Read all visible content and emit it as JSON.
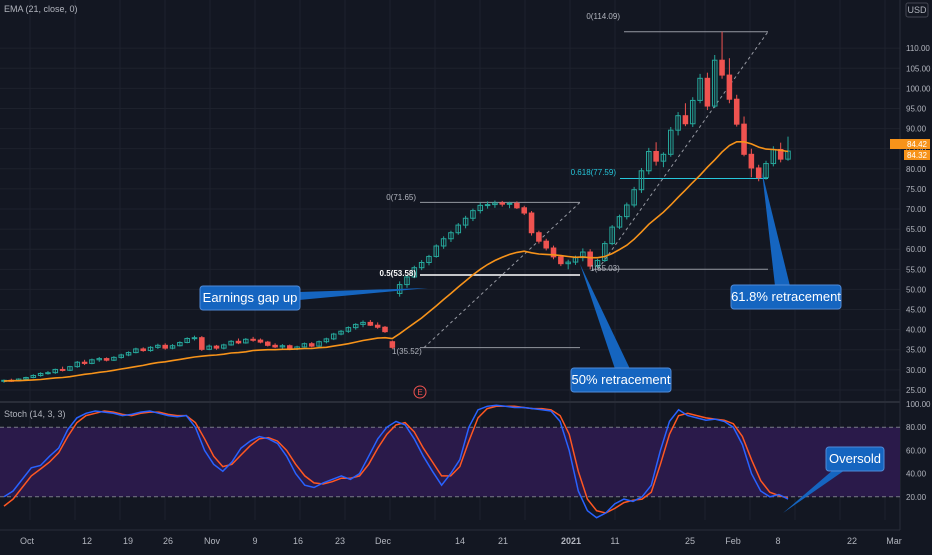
{
  "header": {
    "ema_label": "EMA (21, close, 0)",
    "currency": "USD"
  },
  "price_axis": {
    "ticks": [
      "110.00",
      "105.00",
      "100.00",
      "95.00",
      "90.00",
      "85.00",
      "80.00",
      "75.00",
      "70.00",
      "65.00",
      "60.00",
      "55.00",
      "50.00",
      "45.00",
      "40.00",
      "35.00",
      "30.00",
      "25.00"
    ],
    "last_price": "84.42",
    "ema_value": "84.32",
    "last_price_color": "#f7931a",
    "ema_color": "#f7931a"
  },
  "stoch_axis": {
    "ticks": [
      "100.00",
      "80.00",
      "60.00",
      "40.00",
      "20.00"
    ]
  },
  "time_axis": {
    "ticks": [
      "Oct",
      "12",
      "19",
      "26",
      "Nov",
      "9",
      "16",
      "23",
      "Dec",
      "14",
      "21",
      "2021",
      "11",
      "25",
      "Feb",
      "8",
      "22",
      "Mar"
    ]
  },
  "stoch_label": "Stoch (14, 3, 3)",
  "fib": {
    "upper": {
      "level_0": "0(114.09)",
      "level_618": "0.618(77.59)",
      "level_1": "1(55.03)"
    },
    "lower": {
      "level_0": "0(71.65)",
      "level_05": "0.5(53.58)",
      "level_1": "1(35.52)"
    }
  },
  "callouts": {
    "earnings": "Earnings gap up",
    "fifty": "50% retracement",
    "sixtyone": "61.8% retracement",
    "oversold": "Oversold"
  },
  "earnings_marker": "E",
  "colors": {
    "up": "#26a69a",
    "down": "#ef5350",
    "ema": "#f7931a",
    "stoch_k": "#2962ff",
    "stoch_d": "#ff5722",
    "stoch_band": "#2a1a4a",
    "callout_bg": "#1565c0"
  },
  "chart_data": {
    "type": "candlestick",
    "ylim": [
      23,
      117
    ],
    "stoch_ylim": [
      0,
      100
    ],
    "candles": [
      [
        27.2,
        27.6,
        26.8,
        27.4
      ],
      [
        27.4,
        27.8,
        27.0,
        27.3
      ],
      [
        27.3,
        27.9,
        27.1,
        27.7
      ],
      [
        27.7,
        28.3,
        27.5,
        28.1
      ],
      [
        28.1,
        28.9,
        27.9,
        28.6
      ],
      [
        28.6,
        29.4,
        28.3,
        29.1
      ],
      [
        29.1,
        29.7,
        28.8,
        29.3
      ],
      [
        29.3,
        30.3,
        29.0,
        30.1
      ],
      [
        30.1,
        30.8,
        29.6,
        29.9
      ],
      [
        29.9,
        31.0,
        29.7,
        30.8
      ],
      [
        30.8,
        32.2,
        30.5,
        31.9
      ],
      [
        31.9,
        32.5,
        31.2,
        31.6
      ],
      [
        31.6,
        32.8,
        31.4,
        32.5
      ],
      [
        32.5,
        33.2,
        32.0,
        32.8
      ],
      [
        32.8,
        33.1,
        32.1,
        32.4
      ],
      [
        32.4,
        33.4,
        32.2,
        33.1
      ],
      [
        33.1,
        34.0,
        32.8,
        33.7
      ],
      [
        33.7,
        34.6,
        33.4,
        34.3
      ],
      [
        34.3,
        35.5,
        34.1,
        35.2
      ],
      [
        35.2,
        35.6,
        34.5,
        34.8
      ],
      [
        34.8,
        35.9,
        34.5,
        35.6
      ],
      [
        35.6,
        36.5,
        35.2,
        36.1
      ],
      [
        36.1,
        36.6,
        35.0,
        35.4
      ],
      [
        35.4,
        36.4,
        35.1,
        36.0
      ],
      [
        36.0,
        37.1,
        35.8,
        36.8
      ],
      [
        36.8,
        38.1,
        36.6,
        37.8
      ],
      [
        37.8,
        38.5,
        37.3,
        38.0
      ],
      [
        38.0,
        38.4,
        34.7,
        35.1
      ],
      [
        35.1,
        36.3,
        34.9,
        35.9
      ],
      [
        35.9,
        36.2,
        35.0,
        35.4
      ],
      [
        35.4,
        36.5,
        35.1,
        36.2
      ],
      [
        36.2,
        37.4,
        36.0,
        37.1
      ],
      [
        37.1,
        37.8,
        36.4,
        36.7
      ],
      [
        36.7,
        37.9,
        36.5,
        37.6
      ],
      [
        37.6,
        38.2,
        37.0,
        37.4
      ],
      [
        37.4,
        37.8,
        36.6,
        36.9
      ],
      [
        36.9,
        37.2,
        35.8,
        36.1
      ],
      [
        36.1,
        36.6,
        35.4,
        35.7
      ],
      [
        35.7,
        36.4,
        35.3,
        36.0
      ],
      [
        36.0,
        36.3,
        34.9,
        35.2
      ],
      [
        35.2,
        36.0,
        34.9,
        35.7
      ],
      [
        35.7,
        36.8,
        35.5,
        36.5
      ],
      [
        36.5,
        36.9,
        35.6,
        35.9
      ],
      [
        35.9,
        37.3,
        35.7,
        37.0
      ],
      [
        37.0,
        38.0,
        36.6,
        37.7
      ],
      [
        37.7,
        39.2,
        37.4,
        38.9
      ],
      [
        38.9,
        39.9,
        38.6,
        39.6
      ],
      [
        39.6,
        40.8,
        39.2,
        40.5
      ],
      [
        40.5,
        41.6,
        40.0,
        41.3
      ],
      [
        41.3,
        42.3,
        40.6,
        41.8
      ],
      [
        41.8,
        42.4,
        40.9,
        41.1
      ],
      [
        41.1,
        41.8,
        40.2,
        40.6
      ],
      [
        40.6,
        40.9,
        39.2,
        39.5
      ],
      [
        37.0,
        37.3,
        35.2,
        35.6
      ],
      [
        49.0,
        52.0,
        48.2,
        51.2
      ],
      [
        51.2,
        53.6,
        50.4,
        53.1
      ],
      [
        53.1,
        55.9,
        52.8,
        55.4
      ],
      [
        55.4,
        57.3,
        54.8,
        56.7
      ],
      [
        56.7,
        58.6,
        56.0,
        58.2
      ],
      [
        58.2,
        61.2,
        57.9,
        60.8
      ],
      [
        60.8,
        63.2,
        60.1,
        62.6
      ],
      [
        62.6,
        64.6,
        61.8,
        64.1
      ],
      [
        64.1,
        66.5,
        63.6,
        66.0
      ],
      [
        66.0,
        68.3,
        65.2,
        67.7
      ],
      [
        67.7,
        70.1,
        67.0,
        69.6
      ],
      [
        69.6,
        71.6,
        68.9,
        70.9
      ],
      [
        70.9,
        71.9,
        70.1,
        71.1
      ],
      [
        71.1,
        72.1,
        70.3,
        71.5
      ],
      [
        71.5,
        72.0,
        70.6,
        71.2
      ],
      [
        71.2,
        71.8,
        70.2,
        71.4
      ],
      [
        71.4,
        71.9,
        70.0,
        70.3
      ],
      [
        70.3,
        70.8,
        68.5,
        69.0
      ],
      [
        69.0,
        69.5,
        63.4,
        64.1
      ],
      [
        64.1,
        64.6,
        61.4,
        62.0
      ],
      [
        62.0,
        62.6,
        59.7,
        60.3
      ],
      [
        60.3,
        60.9,
        57.5,
        58.1
      ],
      [
        58.1,
        58.6,
        55.8,
        56.4
      ],
      [
        56.4,
        57.4,
        55.0,
        56.8
      ],
      [
        56.8,
        58.4,
        56.1,
        57.9
      ],
      [
        57.9,
        60.2,
        57.0,
        59.3
      ],
      [
        59.3,
        60.0,
        55.0,
        55.8
      ],
      [
        55.8,
        57.6,
        55.3,
        57.2
      ],
      [
        57.2,
        62.0,
        56.8,
        61.4
      ],
      [
        61.4,
        66.0,
        61.0,
        65.5
      ],
      [
        65.5,
        68.6,
        65.0,
        68.1
      ],
      [
        68.1,
        71.6,
        67.4,
        71.0
      ],
      [
        71.0,
        75.5,
        70.4,
        74.8
      ],
      [
        74.8,
        80.2,
        74.0,
        79.5
      ],
      [
        79.5,
        85.2,
        78.6,
        84.3
      ],
      [
        84.3,
        86.6,
        80.8,
        81.9
      ],
      [
        81.9,
        84.1,
        80.4,
        83.6
      ],
      [
        83.6,
        90.4,
        83.0,
        89.6
      ],
      [
        89.6,
        94.1,
        88.3,
        93.2
      ],
      [
        93.2,
        96.3,
        90.6,
        91.2
      ],
      [
        91.2,
        97.8,
        90.4,
        97.0
      ],
      [
        97.0,
        103.6,
        96.3,
        102.5
      ],
      [
        102.5,
        103.9,
        94.6,
        95.6
      ],
      [
        95.6,
        108.3,
        95.1,
        107.0
      ],
      [
        107.0,
        114.1,
        102.4,
        103.3
      ],
      [
        103.3,
        107.5,
        96.3,
        97.3
      ],
      [
        97.3,
        98.4,
        90.5,
        91.1
      ],
      [
        91.1,
        93.0,
        83.1,
        83.6
      ],
      [
        83.6,
        85.0,
        77.9,
        80.2
      ],
      [
        80.2,
        81.0,
        76.9,
        77.8
      ],
      [
        77.8,
        82.0,
        77.3,
        81.3
      ],
      [
        81.3,
        85.6,
        80.6,
        84.8
      ],
      [
        84.8,
        86.5,
        81.6,
        82.4
      ],
      [
        82.4,
        88.0,
        82.0,
        84.4
      ]
    ],
    "ema": [
      27.2,
      27.3,
      27.3,
      27.4,
      27.5,
      27.6,
      27.8,
      28.0,
      28.1,
      28.3,
      28.6,
      28.9,
      29.1,
      29.4,
      29.6,
      29.9,
      30.2,
      30.5,
      30.8,
      31.1,
      31.5,
      31.8,
      32.0,
      32.3,
      32.6,
      32.9,
      33.2,
      33.4,
      33.6,
      33.7,
      33.9,
      34.2,
      34.3,
      34.5,
      34.8,
      34.9,
      35.0,
      35.0,
      35.1,
      35.1,
      35.2,
      35.3,
      35.3,
      35.5,
      35.6,
      35.9,
      36.2,
      36.5,
      36.9,
      37.3,
      37.6,
      37.9,
      38.0,
      37.8,
      39.0,
      40.3,
      41.6,
      42.9,
      44.4,
      45.9,
      47.5,
      49.0,
      50.6,
      52.1,
      53.6,
      55.0,
      56.2,
      57.2,
      58.0,
      58.7,
      59.2,
      59.5,
      59.1,
      58.8,
      58.7,
      58.6,
      58.4,
      58.2,
      58.0,
      58.1,
      57.9,
      57.9,
      58.2,
      58.9,
      59.9,
      61.0,
      62.5,
      64.3,
      66.2,
      67.7,
      69.2,
      71.0,
      72.9,
      74.7,
      76.6,
      78.4,
      80.4,
      82.2,
      84.2,
      85.8,
      86.7,
      86.7,
      86.2,
      85.4,
      84.9,
      84.8,
      84.6,
      84.3
    ],
    "stoch_k": [
      20,
      25,
      35,
      45,
      47,
      55,
      62,
      78,
      88,
      92,
      94,
      93,
      92,
      90,
      91,
      93,
      94,
      92,
      90,
      89,
      90,
      80,
      60,
      48,
      42,
      50,
      62,
      68,
      72,
      70,
      66,
      55,
      40,
      30,
      28,
      32,
      35,
      38,
      35,
      40,
      55,
      70,
      80,
      85,
      82,
      70,
      55,
      42,
      30,
      40,
      52,
      80,
      95,
      98,
      99,
      98,
      97,
      97,
      96,
      95,
      94,
      85,
      60,
      25,
      8,
      2,
      6,
      14,
      18,
      16,
      20,
      30,
      60,
      85,
      95,
      90,
      88,
      86,
      87,
      85,
      80,
      65,
      40,
      25,
      20,
      22,
      18
    ],
    "stoch_d": [
      12,
      18,
      28,
      38,
      44,
      50,
      58,
      72,
      84,
      90,
      92,
      94,
      93,
      91,
      90,
      92,
      93,
      93,
      91,
      90,
      90,
      84,
      70,
      55,
      46,
      48,
      56,
      64,
      70,
      71,
      68,
      60,
      48,
      38,
      32,
      31,
      33,
      36,
      36,
      38,
      48,
      62,
      74,
      82,
      84,
      76,
      62,
      50,
      38,
      38,
      46,
      68,
      88,
      96,
      98,
      98,
      98,
      97,
      96,
      96,
      95,
      90,
      74,
      42,
      18,
      8,
      6,
      10,
      15,
      17,
      18,
      24,
      48,
      74,
      90,
      92,
      90,
      88,
      87,
      86,
      83,
      72,
      52,
      34,
      24,
      21,
      19
    ],
    "fib_upper": {
      "high": 114.09,
      "low": 55.03,
      "level_618": 77.59
    },
    "fib_lower": {
      "high": 71.65,
      "low": 35.52,
      "level_05": 53.58
    }
  }
}
